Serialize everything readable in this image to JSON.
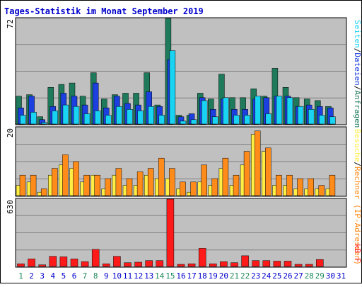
{
  "chart_data": {
    "type": "bar",
    "title": "Tages-Statistik im Monat September 2019",
    "categories": [
      "1",
      "2",
      "3",
      "4",
      "5",
      "6",
      "7",
      "8",
      "9",
      "10",
      "11",
      "12",
      "13",
      "14",
      "15",
      "16",
      "17",
      "18",
      "19",
      "20",
      "21",
      "22",
      "23",
      "24",
      "25",
      "26",
      "27",
      "28",
      "29",
      "30",
      "31"
    ],
    "weekend_days": [
      "1",
      "7",
      "8",
      "14",
      "15",
      "21",
      "22",
      "28",
      "29"
    ],
    "panels": [
      {
        "id": "top",
        "ymax_label": "72",
        "ylim": [
          0,
          72
        ],
        "series": [
          {
            "name": "Anfragen",
            "color": "#1e7a5a",
            "values": [
              19,
              20,
              5,
              25,
              27,
              28,
              19,
              35,
              17,
              20,
              21,
              21,
              35,
              13,
              72,
              6,
              6,
              21,
              17,
              34,
              18,
              18,
              24,
              19,
              38,
              25,
              18,
              17,
              16,
              12,
              null
            ]
          },
          {
            "name": "Dateien",
            "color": "#1c3fe0",
            "values": [
              11,
              19,
              3,
              12,
              21,
              19,
              13,
              28,
              11,
              19,
              14,
              13,
              22,
              12,
              44,
              5,
              7,
              18,
              10,
              17,
              10,
              10,
              17,
              18,
              19,
              19,
              12,
              13,
              12,
              11,
              null
            ]
          },
          {
            "name": "Seiten",
            "color": "#19d3f2",
            "values": [
              6,
              8,
              1,
              9,
              13,
              12,
              7,
              9,
              6,
              12,
              10,
              9,
              12,
              6,
              50,
              2,
              3,
              16,
              5,
              18,
              6,
              6,
              19,
              7,
              19,
              18,
              12,
              10,
              6,
              5,
              null
            ]
          }
        ]
      },
      {
        "id": "middle",
        "ymax_label": "20",
        "ylim": [
          0,
          20
        ],
        "series": [
          {
            "name": "Besuche",
            "color": "#ffee44",
            "values": [
              3,
              4,
              1,
              6,
              9,
              8,
              4,
              6,
              2,
              6,
              3,
              3,
              6,
              5,
              5,
              2,
              1,
              4,
              3,
              8,
              3,
              9,
              18,
              13,
              3,
              3,
              2,
              2,
              2,
              2,
              null
            ]
          },
          {
            "name": "Rechner (IP-Adressen)",
            "color": "#ff8c1a",
            "values": [
              6,
              6,
              2,
              8,
              12,
              10,
              6,
              6,
              5,
              8,
              5,
              7,
              8,
              11,
              8,
              4,
              4,
              9,
              5,
              11,
              6,
              13,
              19,
              14,
              6,
              6,
              5,
              5,
              3,
              6,
              null
            ]
          }
        ]
      },
      {
        "id": "bottom",
        "ymax_label": "630",
        "ylim": [
          0,
          630
        ],
        "series": [
          {
            "name": "kB F",
            "color": "#ff1a1a",
            "values": [
              25,
              70,
              15,
              95,
              90,
              70,
              45,
              160,
              25,
              95,
              35,
              40,
              55,
              55,
              630,
              20,
              25,
              170,
              25,
              45,
              35,
              100,
              55,
              55,
              50,
              50,
              20,
              20,
              65,
              null,
              null
            ]
          }
        ]
      }
    ],
    "legend_top": [
      {
        "text": "Dateien",
        "color": "#1c3fe0"
      },
      {
        "text": "/",
        "color": "#000000"
      },
      {
        "text": "Anfragen",
        "color": "#1e7a5a"
      }
    ],
    "legend_top_prefix": [
      {
        "text": "Seiten",
        "color": "#19d3f2"
      },
      {
        "text": "/",
        "color": "#000000"
      }
    ],
    "legend_middle": [
      {
        "text": "Besuche",
        "color": "#ffee44"
      },
      {
        "text": "/",
        "color": "#000000"
      },
      {
        "text": "Rechner (IP-Adressen)",
        "color": "#ff8c1a"
      }
    ],
    "legend_bottom": [
      {
        "text": "kB F",
        "color": "#ff1a1a"
      }
    ],
    "colors": {
      "panel_bg": "#c0c0c0",
      "page_bg": "#ffffff",
      "title": "#0000cc",
      "weekday_label": "#0000cc",
      "weekend_label": "#1e8a5a",
      "grid": "#808080"
    }
  }
}
